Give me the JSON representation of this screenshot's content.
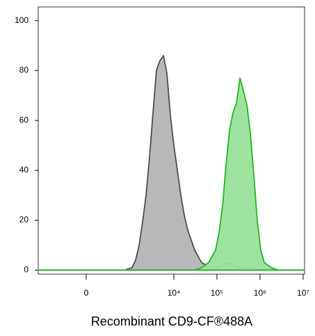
{
  "chart_data": {
    "type": "area",
    "xlabel": "Recombinant CD9-CF®488A",
    "x": [
      -1190,
      729,
      1064,
      1290,
      1561,
      1870,
      2260,
      2720,
      3280,
      3940,
      4760,
      5750,
      6890,
      8320,
      10000,
      12050,
      14560,
      17450,
      21100,
      30500,
      44200,
      64000,
      92700,
      112000,
      135600,
      162000,
      196000,
      235000,
      284000,
      343000,
      411000,
      498000,
      596000,
      718000,
      862000,
      1040000,
      1260000,
      1820000,
      2640000,
      10800000
    ],
    "series": [
      {
        "color": "#b4b4b4",
        "stroke": "#4d4d4d",
        "values": [
          0,
          0,
          1,
          4,
          10,
          19,
          30,
          45,
          63,
          80,
          84,
          86,
          79,
          62,
          50,
          40,
          30,
          22,
          16,
          8,
          3,
          1.5,
          1,
          1.5,
          2,
          2.5,
          2.5,
          2,
          1.5,
          1,
          1,
          1,
          1,
          1,
          0.5,
          0,
          0,
          0,
          0,
          0
        ]
      },
      {
        "color": "#98e09a",
        "stroke": "#22b522",
        "values": [
          0,
          0,
          0,
          0,
          0,
          0,
          0,
          0,
          0,
          0,
          0,
          0,
          0,
          0,
          0,
          0,
          0,
          0,
          0,
          0,
          1,
          3,
          8,
          15,
          26,
          42,
          56,
          63,
          67,
          77,
          72,
          66,
          55,
          38,
          20,
          8,
          3,
          1,
          0,
          0
        ]
      }
    ],
    "xlim": [
      -1190,
      10800000
    ],
    "xticks": [
      0,
      {
        "value": 10000,
        "label": "10⁴"
      },
      {
        "value": 100000,
        "label": "10⁵"
      },
      {
        "value": 1000000,
        "label": "10⁶"
      },
      {
        "value": 10000000,
        "label": "10⁷"
      }
    ],
    "ylim": [
      -1.6,
      105.5
    ],
    "yticks": [
      0,
      20,
      40,
      60,
      80,
      100
    ]
  }
}
